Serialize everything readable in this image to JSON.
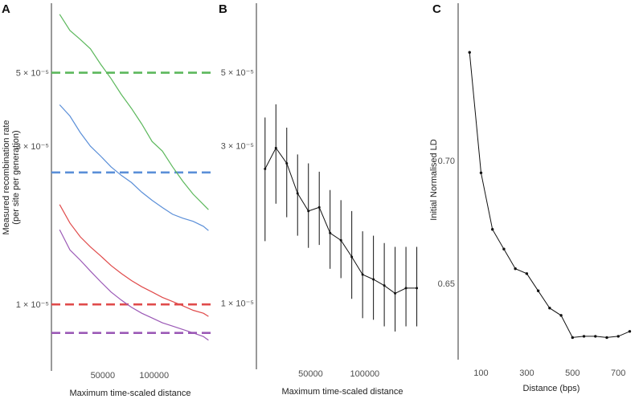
{
  "chart_data": [
    {
      "panel": "A",
      "type": "line",
      "x_label": "Maximum time-scaled distance",
      "y_label_line1": "Measured recombination rate",
      "y_label_line2": "(per site per generation)",
      "y_scale": "log",
      "xlim": [
        0,
        155000
      ],
      "ylim": [
        6.3e-06,
        8.1e-05
      ],
      "x_ticks": [
        {
          "value": 50000,
          "label": "50000"
        },
        {
          "value": 100000,
          "label": "100000"
        }
      ],
      "y_ticks": [
        {
          "value": 5e-05,
          "label": "5 × 10⁻⁵"
        },
        {
          "value": 3e-05,
          "label": "3 × 10⁻⁵"
        },
        {
          "value": 1e-05,
          "label": "1 × 10⁻⁵"
        }
      ],
      "x": [
        8000,
        18000,
        28000,
        38000,
        48000,
        58000,
        68000,
        78000,
        88000,
        98000,
        108000,
        118000,
        128000,
        138000,
        148000,
        153000
      ],
      "series": [
        {
          "name": "green",
          "color": "#5cb85c",
          "true_rate": 5e-05,
          "values": [
            7.5e-05,
            6.7e-05,
            6.3e-05,
            5.9e-05,
            5.3e-05,
            4.8e-05,
            4.3e-05,
            3.9e-05,
            3.5e-05,
            3.1e-05,
            2.9e-05,
            2.6e-05,
            2.35e-05,
            2.15e-05,
            2e-05,
            1.93e-05
          ]
        },
        {
          "name": "blue",
          "color": "#5b8fd8",
          "true_rate": 2.5e-05,
          "values": [
            4e-05,
            3.7e-05,
            3.3e-05,
            3e-05,
            2.8e-05,
            2.6e-05,
            2.45e-05,
            2.33e-05,
            2.18e-05,
            2.06e-05,
            1.96e-05,
            1.87e-05,
            1.82e-05,
            1.78e-05,
            1.72e-05,
            1.67e-05
          ]
        },
        {
          "name": "red",
          "color": "#e04b4b",
          "true_rate": 1e-05,
          "values": [
            2e-05,
            1.76e-05,
            1.6e-05,
            1.49e-05,
            1.4e-05,
            1.31e-05,
            1.24e-05,
            1.18e-05,
            1.13e-05,
            1.09e-05,
            1.05e-05,
            1.02e-05,
            9.9e-06,
            9.6e-06,
            9.4e-06,
            9.2e-06
          ]
        },
        {
          "name": "purple",
          "color": "#9b59b6",
          "true_rate": 8.2e-06,
          "values": [
            1.68e-05,
            1.46e-05,
            1.36e-05,
            1.26e-05,
            1.17e-05,
            1.09e-05,
            1.03e-05,
            9.8e-06,
            9.4e-06,
            9.1e-06,
            8.8e-06,
            8.6e-06,
            8.4e-06,
            8.2e-06,
            8e-06,
            7.8e-06
          ]
        }
      ]
    },
    {
      "panel": "B",
      "type": "line",
      "x_label": "Maximum time-scaled distance",
      "y_scale": "log",
      "xlim": [
        0,
        155000
      ],
      "ylim": [
        6.3e-06,
        8.1e-05
      ],
      "x_ticks": [
        {
          "value": 50000,
          "label": "50000"
        },
        {
          "value": 100000,
          "label": "100000"
        }
      ],
      "y_ticks": [
        {
          "value": 5e-05,
          "label": "5 × 10⁻⁵"
        },
        {
          "value": 3e-05,
          "label": "3 × 10⁻⁵"
        },
        {
          "value": 1e-05,
          "label": "1 × 10⁻⁵"
        }
      ],
      "x": [
        8000,
        18000,
        28000,
        38000,
        48000,
        58000,
        68000,
        78000,
        88000,
        98000,
        108000,
        118000,
        128000,
        138000,
        148000
      ],
      "mean": [
        2.55e-05,
        2.95e-05,
        2.65e-05,
        2.15e-05,
        1.9e-05,
        1.95e-05,
        1.63e-05,
        1.55e-05,
        1.38e-05,
        1.22e-05,
        1.18e-05,
        1.13e-05,
        1.07e-05,
        1.11e-05,
        1.11e-05
      ],
      "lower": [
        1.54e-05,
        2e-05,
        1.82e-05,
        1.6e-05,
        1.47e-05,
        1.5e-05,
        1.27e-05,
        1.19e-05,
        1.03e-05,
        9e-06,
        8.9e-06,
        8.5e-06,
        8.2e-06,
        8.5e-06,
        8.5e-06
      ],
      "upper": [
        3.65e-05,
        4e-05,
        3.4e-05,
        2.82e-05,
        2.65e-05,
        2.5e-05,
        2.2e-05,
        2.05e-05,
        1.9e-05,
        1.65e-05,
        1.6e-05,
        1.52e-05,
        1.48e-05,
        1.48e-05,
        1.48e-05
      ]
    },
    {
      "panel": "C",
      "type": "line",
      "x_label": "Distance (bps)",
      "y_label": "Initial Normalised LD",
      "xlim": [
        0,
        780
      ],
      "ylim": [
        0.619,
        0.764
      ],
      "x_ticks": [
        {
          "value": 100,
          "label": "100"
        },
        {
          "value": 300,
          "label": "300"
        },
        {
          "value": 500,
          "label": "500"
        },
        {
          "value": 700,
          "label": "700"
        }
      ],
      "y_ticks": [
        {
          "value": 0.7,
          "label": "0.70"
        },
        {
          "value": 0.65,
          "label": "0.65"
        }
      ],
      "x": [
        50,
        100,
        150,
        200,
        250,
        300,
        350,
        400,
        450,
        500,
        550,
        600,
        650,
        700,
        750
      ],
      "values": [
        0.744,
        0.695,
        0.672,
        0.664,
        0.656,
        0.654,
        0.647,
        0.64,
        0.637,
        0.628,
        0.6285,
        0.6285,
        0.628,
        0.6285,
        0.6305
      ]
    }
  ],
  "panel_letters": [
    "A",
    "B",
    "C"
  ]
}
